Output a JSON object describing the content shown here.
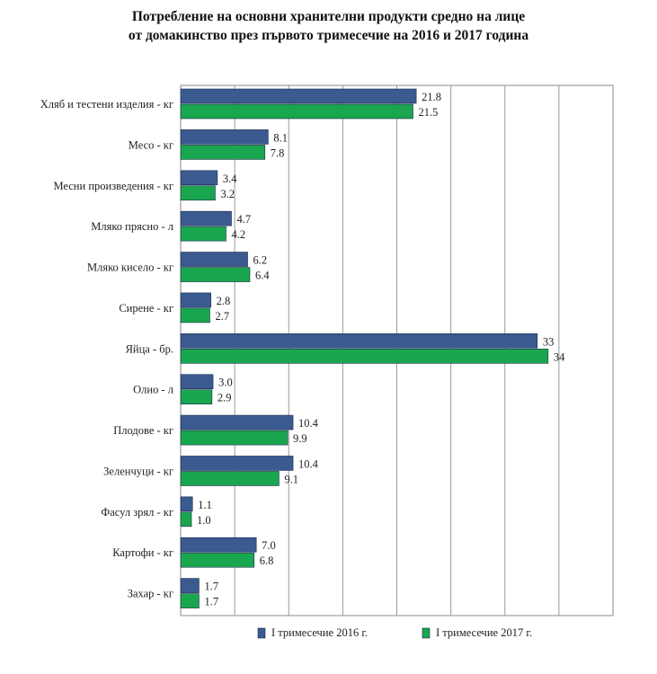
{
  "chart_data": {
    "type": "bar",
    "orientation": "horizontal",
    "title_line_1": "Потребление на основни хранителни продукти средно на лице",
    "title_line_2": "от домакинство през първото тримесечие на 2016 и 2017 година",
    "categories": [
      "Хляб и тестени изделия - кг",
      "Месо - кг",
      "Месни произведения - кг",
      "Мляко прясно - л",
      "Мляко кисело - кг",
      "Сирене - кг",
      "Яйца - бр.",
      "Олио - л",
      "Плодове - кг",
      "Зеленчуци - кг",
      "Фасул зрял - кг",
      "Картофи - кг",
      "Захар - кг"
    ],
    "series": [
      {
        "name": "I тримесечие 2016 г.",
        "color": "#3b5a8f",
        "values": [
          21.8,
          8.1,
          3.4,
          4.7,
          6.2,
          2.8,
          33,
          3.0,
          10.4,
          10.4,
          1.1,
          7.0,
          1.7
        ],
        "labels": [
          "21.8",
          "8.1",
          "3.4",
          "4.7",
          "6.2",
          "2.8",
          "33",
          "3.0",
          "10.4",
          "10.4",
          "1.1",
          "7.0",
          "1.7"
        ]
      },
      {
        "name": "I тримесечие 2017 г.",
        "color": "#1aa64e",
        "values": [
          21.5,
          7.8,
          3.2,
          4.2,
          6.4,
          2.7,
          34,
          2.9,
          9.9,
          9.1,
          1.0,
          6.8,
          1.7
        ],
        "labels": [
          "21.5",
          "7.8",
          "3.2",
          "4.2",
          "6.4",
          "2.7",
          "34",
          "2.9",
          "9.9",
          "9.1",
          "1.0",
          "6.8",
          "1.7"
        ]
      }
    ],
    "xlim": [
      0,
      40
    ],
    "grid": true,
    "legend_position": "bottom"
  }
}
